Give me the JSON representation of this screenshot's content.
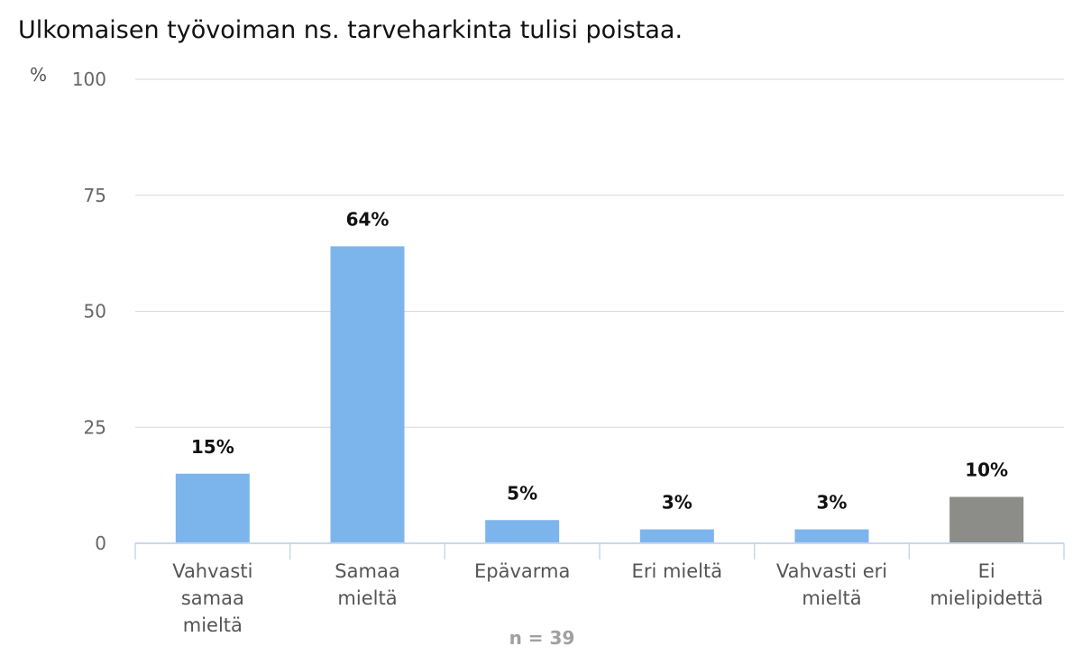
{
  "chart_data": {
    "type": "bar",
    "title": "Ulkomaisen työvoiman ns. tarveharkinta tulisi poistaa.",
    "ylabel": "%",
    "xlabel": "",
    "ylim": [
      0,
      100
    ],
    "yticks": [
      0,
      25,
      50,
      75,
      100
    ],
    "grid": true,
    "categories": [
      [
        "Vahvasti",
        "samaa",
        "mieltä"
      ],
      [
        "Samaa",
        "mieltä"
      ],
      [
        "Epävarma"
      ],
      [
        "Eri mieltä"
      ],
      [
        "Vahvasti eri",
        "mieltä"
      ],
      [
        "Ei",
        "mielipidettä"
      ]
    ],
    "values": [
      15,
      64,
      5,
      3,
      3,
      10
    ],
    "value_labels": [
      "15%",
      "64%",
      "5%",
      "3%",
      "3%",
      "10%"
    ],
    "bar_colors": [
      "#7cb5ec",
      "#7cb5ec",
      "#7cb5ec",
      "#7cb5ec",
      "#7cb5ec",
      "#8c8c88"
    ],
    "footnote": "n = 39"
  }
}
